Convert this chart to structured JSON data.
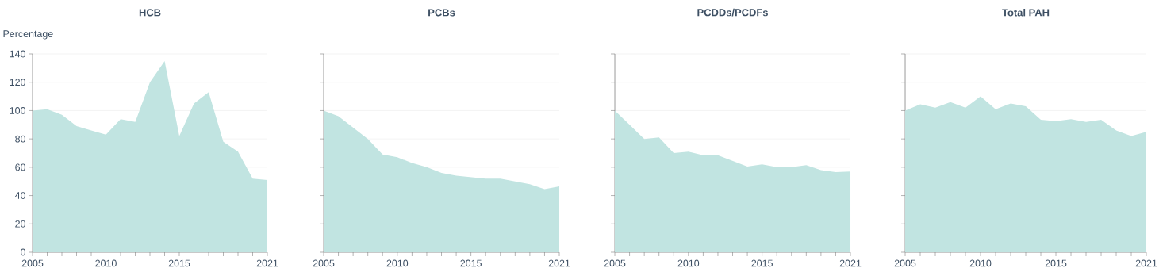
{
  "chart_data": [
    {
      "type": "area",
      "title": "HCB",
      "ylabel": "Percentage",
      "color": "#c1e4e1",
      "grid": "y",
      "x": [
        2005,
        2006,
        2007,
        2008,
        2009,
        2010,
        2011,
        2012,
        2013,
        2014,
        2015,
        2016,
        2017,
        2018,
        2019,
        2020,
        2021
      ],
      "values": [
        100,
        101,
        97,
        89,
        86,
        83,
        94,
        92,
        120,
        135,
        82,
        105,
        113,
        78,
        71,
        52,
        51
      ],
      "xlim": [
        2005,
        2021
      ],
      "ylim": [
        0,
        140
      ],
      "yticks": [
        0,
        20,
        40,
        60,
        80,
        100,
        120,
        140
      ],
      "xticks": [
        2005,
        {
          "value": 2006,
          "label": null
        },
        {
          "value": 2007,
          "label": null
        },
        {
          "value": 2008,
          "label": null
        },
        {
          "value": 2009,
          "label": null
        },
        2010,
        {
          "value": 2011,
          "label": null
        },
        {
          "value": 2012,
          "label": null
        },
        {
          "value": 2013,
          "label": null
        },
        {
          "value": 2014,
          "label": null
        },
        2015,
        {
          "value": 2016,
          "label": null
        },
        {
          "value": 2017,
          "label": null
        },
        {
          "value": 2018,
          "label": null
        },
        {
          "value": 2019,
          "label": null
        },
        {
          "value": 2020,
          "label": null
        },
        2021
      ]
    },
    {
      "type": "area",
      "title": "PCBs",
      "color": "#c1e4e1",
      "grid": "y",
      "tick_labels": "x",
      "x": [
        2005,
        2006,
        2007,
        2008,
        2009,
        2010,
        2011,
        2012,
        2013,
        2014,
        2015,
        2016,
        2017,
        2018,
        2019,
        2020,
        2021
      ],
      "values": [
        100,
        96,
        88,
        80,
        69,
        67,
        63,
        60,
        56,
        54,
        53,
        52,
        52,
        50,
        48,
        44.5,
        46.5
      ],
      "xlim": [
        2005,
        2021
      ],
      "ylim": [
        0,
        140
      ],
      "yticks": [
        0,
        20,
        40,
        60,
        80,
        100,
        120,
        140
      ],
      "xticks": [
        2005,
        {
          "value": 2006,
          "label": null
        },
        {
          "value": 2007,
          "label": null
        },
        {
          "value": 2008,
          "label": null
        },
        {
          "value": 2009,
          "label": null
        },
        2010,
        {
          "value": 2011,
          "label": null
        },
        {
          "value": 2012,
          "label": null
        },
        {
          "value": 2013,
          "label": null
        },
        {
          "value": 2014,
          "label": null
        },
        2015,
        {
          "value": 2016,
          "label": null
        },
        {
          "value": 2017,
          "label": null
        },
        {
          "value": 2018,
          "label": null
        },
        {
          "value": 2019,
          "label": null
        },
        {
          "value": 2020,
          "label": null
        },
        2021
      ]
    },
    {
      "type": "area",
      "title": "PCDDs/PCDFs",
      "color": "#c1e4e1",
      "grid": "y",
      "tick_labels": "x",
      "x": [
        2005,
        2006,
        2007,
        2008,
        2009,
        2010,
        2011,
        2012,
        2013,
        2014,
        2015,
        2016,
        2017,
        2018,
        2019,
        2020,
        2021
      ],
      "values": [
        100,
        90,
        80,
        81,
        70,
        71,
        68.5,
        68.5,
        64.5,
        60.5,
        62,
        60,
        60,
        61.5,
        58,
        56.5,
        57
      ],
      "xlim": [
        2005,
        2021
      ],
      "ylim": [
        0,
        140
      ],
      "yticks": [
        0,
        20,
        40,
        60,
        80,
        100,
        120,
        140
      ],
      "xticks": [
        2005,
        {
          "value": 2006,
          "label": null
        },
        {
          "value": 2007,
          "label": null
        },
        {
          "value": 2008,
          "label": null
        },
        {
          "value": 2009,
          "label": null
        },
        2010,
        {
          "value": 2011,
          "label": null
        },
        {
          "value": 2012,
          "label": null
        },
        {
          "value": 2013,
          "label": null
        },
        {
          "value": 2014,
          "label": null
        },
        2015,
        {
          "value": 2016,
          "label": null
        },
        {
          "value": 2017,
          "label": null
        },
        {
          "value": 2018,
          "label": null
        },
        {
          "value": 2019,
          "label": null
        },
        {
          "value": 2020,
          "label": null
        },
        2021
      ]
    },
    {
      "type": "area",
      "title": "Total PAH",
      "color": "#c1e4e1",
      "grid": "y",
      "tick_labels": "x",
      "x": [
        2005,
        2006,
        2007,
        2008,
        2009,
        2010,
        2011,
        2012,
        2013,
        2014,
        2015,
        2016,
        2017,
        2018,
        2019,
        2020,
        2021
      ],
      "values": [
        100,
        104.5,
        102,
        106,
        102,
        110,
        101,
        105,
        103,
        93.5,
        92.5,
        94,
        92,
        93.5,
        86,
        82,
        85
      ],
      "xlim": [
        2005,
        2021
      ],
      "ylim": [
        0,
        140
      ],
      "yticks": [
        0,
        20,
        40,
        60,
        80,
        100,
        120,
        140
      ],
      "xticks": [
        2005,
        {
          "value": 2006,
          "label": null
        },
        {
          "value": 2007,
          "label": null
        },
        {
          "value": 2008,
          "label": null
        },
        {
          "value": 2009,
          "label": null
        },
        2010,
        {
          "value": 2011,
          "label": null
        },
        {
          "value": 2012,
          "label": null
        },
        {
          "value": 2013,
          "label": null
        },
        {
          "value": 2014,
          "label": null
        },
        2015,
        {
          "value": 2016,
          "label": null
        },
        {
          "value": 2017,
          "label": null
        },
        {
          "value": 2018,
          "label": null
        },
        {
          "value": 2019,
          "label": null
        },
        {
          "value": 2020,
          "label": null
        },
        2021
      ]
    }
  ]
}
